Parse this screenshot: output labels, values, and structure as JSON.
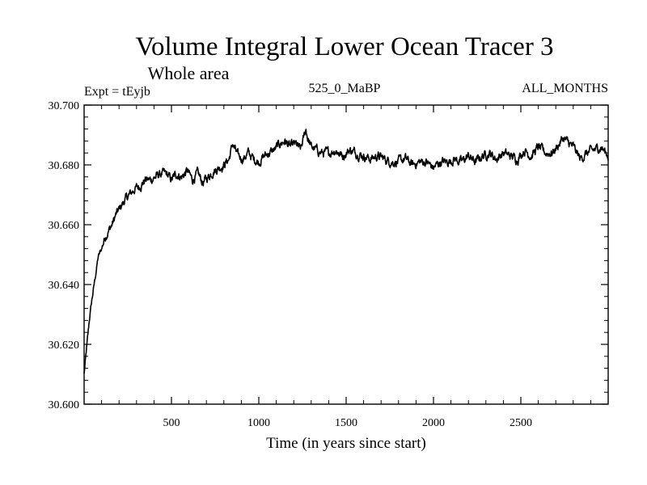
{
  "chart_data": {
    "type": "line",
    "title": "Volume Integral Lower Ocean Tracer 3",
    "subtitle": "Whole area",
    "header_left": "Expt = tEyjb",
    "header_center": "525_0_MaBP",
    "header_right": "ALL_MONTHS",
    "xlabel": "Time (in years since start)",
    "ylabel": "",
    "xlim": [
      0,
      3000
    ],
    "ylim": [
      30.6,
      30.7
    ],
    "x_ticks": [
      500,
      1000,
      1500,
      2000,
      2500
    ],
    "x_tick_labels": [
      "500",
      "1000",
      "1500",
      "2000",
      "2500"
    ],
    "y_ticks": [
      30.6,
      30.62,
      30.64,
      30.66,
      30.68,
      30.7
    ],
    "y_tick_labels": [
      "30.600",
      "30.620",
      "30.640",
      "30.660",
      "30.680",
      "30.700"
    ],
    "series": [
      {
        "name": "Lower Ocean Tracer 3",
        "x": [
          0,
          10,
          20,
          30,
          40,
          60,
          80,
          100,
          120,
          140,
          160,
          180,
          200,
          230,
          260,
          290,
          320,
          350,
          380,
          410,
          440,
          470,
          500,
          530,
          560,
          590,
          620,
          650,
          680,
          710,
          740,
          770,
          800,
          830,
          850,
          880,
          910,
          940,
          970,
          1000,
          1030,
          1060,
          1090,
          1120,
          1150,
          1180,
          1210,
          1240,
          1270,
          1280,
          1300,
          1330,
          1360,
          1400,
          1440,
          1480,
          1520,
          1560,
          1600,
          1640,
          1680,
          1720,
          1760,
          1800,
          1840,
          1880,
          1920,
          1960,
          2000,
          2040,
          2080,
          2120,
          2160,
          2200,
          2240,
          2280,
          2320,
          2360,
          2400,
          2440,
          2480,
          2520,
          2560,
          2600,
          2640,
          2680,
          2720,
          2740,
          2760,
          2800,
          2840,
          2880,
          2920,
          2960,
          3000
        ],
        "y": [
          30.61,
          30.616,
          30.622,
          30.628,
          30.633,
          30.641,
          30.649,
          30.652,
          30.656,
          30.658,
          30.66,
          30.663,
          30.665,
          30.668,
          30.67,
          30.672,
          30.673,
          30.675,
          30.675,
          30.676,
          30.677,
          30.677,
          30.675,
          30.677,
          30.676,
          30.678,
          30.675,
          30.677,
          30.674,
          30.676,
          30.678,
          30.679,
          30.68,
          30.682,
          30.687,
          30.683,
          30.682,
          30.684,
          30.682,
          30.681,
          30.683,
          30.684,
          30.685,
          30.687,
          30.688,
          30.686,
          30.687,
          30.685,
          30.692,
          30.689,
          30.686,
          30.685,
          30.684,
          30.684,
          30.685,
          30.683,
          30.685,
          30.684,
          30.683,
          30.682,
          30.683,
          30.682,
          30.681,
          30.681,
          30.682,
          30.68,
          30.681,
          30.681,
          30.679,
          30.681,
          30.681,
          30.682,
          30.681,
          30.683,
          30.681,
          30.683,
          30.684,
          30.682,
          30.684,
          30.683,
          30.682,
          30.685,
          30.683,
          30.686,
          30.684,
          30.684,
          30.687,
          30.689,
          30.688,
          30.686,
          30.682,
          30.684,
          30.685,
          30.686,
          30.683
        ]
      }
    ]
  }
}
